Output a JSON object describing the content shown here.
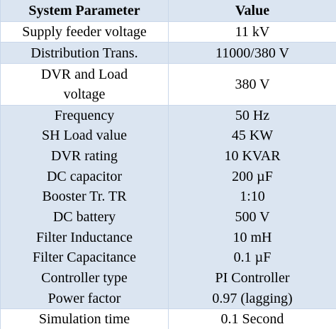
{
  "table": {
    "header": [
      "System Parameter",
      "Value"
    ],
    "rows": [
      [
        "Supply feeder voltage",
        "11 kV"
      ],
      [
        "Distribution Trans.",
        "11000/380 V"
      ],
      [
        "DVR and Load voltage",
        "380 V"
      ],
      [
        "Frequency",
        "50 Hz"
      ],
      [
        "SH Load value",
        "45 KW"
      ],
      [
        "DVR rating",
        "10 KVAR"
      ],
      [
        "DC capacitor",
        "200 µF"
      ],
      [
        "Booster Tr. TR",
        "1:10"
      ],
      [
        "DC battery",
        "500 V"
      ],
      [
        "Filter Inductance",
        "10 mH"
      ],
      [
        "Filter Capacitance",
        "0.1 µF"
      ],
      [
        "Controller type",
        "PI Controller"
      ],
      [
        "Power factor",
        "0.97 (lagging)"
      ],
      [
        "Simulation time",
        "0.1 Second"
      ]
    ]
  }
}
